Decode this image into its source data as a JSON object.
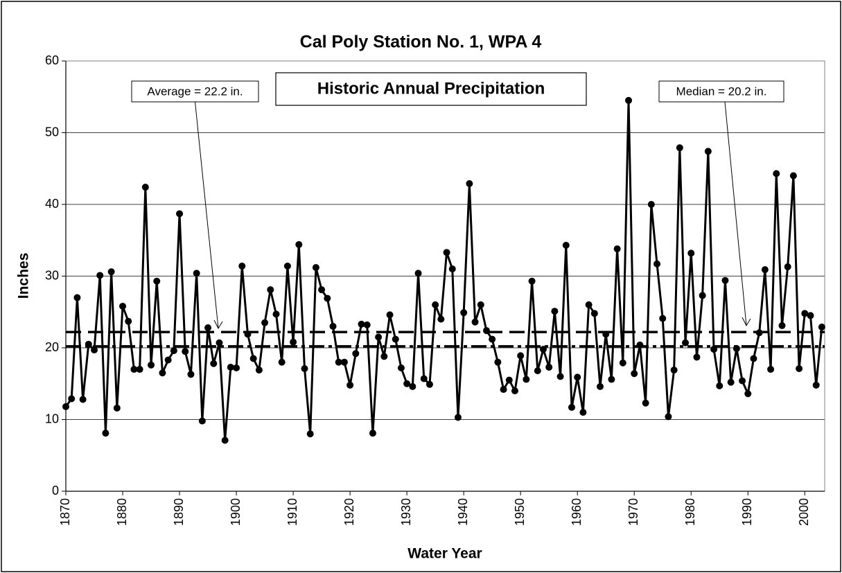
{
  "chart_data": {
    "type": "line",
    "title": "Cal Poly Station No. 1, WPA 4",
    "x_label": "Water Year",
    "y_label": "Inches",
    "annotation": "Historic Annual Precipitation",
    "xlim": [
      1870,
      2003.5
    ],
    "ylim": [
      0,
      60
    ],
    "xticks": [
      1870,
      1880,
      1890,
      1900,
      1910,
      1920,
      1930,
      1940,
      1950,
      1960,
      1970,
      1980,
      1990,
      2000
    ],
    "yticks": [
      0,
      10,
      20,
      30,
      40,
      50,
      60
    ],
    "grid": true,
    "x": [
      1870,
      1871,
      1872,
      1873,
      1874,
      1875,
      1876,
      1877,
      1878,
      1879,
      1880,
      1881,
      1882,
      1883,
      1884,
      1885,
      1886,
      1887,
      1888,
      1889,
      1890,
      1891,
      1892,
      1893,
      1894,
      1895,
      1896,
      1897,
      1898,
      1899,
      1900,
      1901,
      1902,
      1903,
      1904,
      1905,
      1906,
      1907,
      1908,
      1909,
      1910,
      1911,
      1912,
      1913,
      1914,
      1915,
      1916,
      1917,
      1918,
      1919,
      1920,
      1921,
      1922,
      1923,
      1924,
      1925,
      1926,
      1927,
      1928,
      1929,
      1930,
      1931,
      1932,
      1933,
      1934,
      1935,
      1936,
      1937,
      1938,
      1939,
      1940,
      1941,
      1942,
      1943,
      1944,
      1945,
      1946,
      1947,
      1948,
      1949,
      1950,
      1951,
      1952,
      1953,
      1954,
      1955,
      1956,
      1957,
      1958,
      1959,
      1960,
      1961,
      1962,
      1963,
      1964,
      1965,
      1966,
      1967,
      1968,
      1969,
      1970,
      1971,
      1972,
      1973,
      1974,
      1975,
      1976,
      1977,
      1978,
      1979,
      1980,
      1981,
      1982,
      1983,
      1984,
      1985,
      1986,
      1987,
      1988,
      1989,
      1990,
      1991,
      1992,
      1993,
      1994,
      1995,
      1996,
      1997,
      1998,
      1999,
      2000,
      2001,
      2002,
      2003
    ],
    "series": [
      {
        "name": "Annual Precipitation",
        "color": "#000000",
        "values": [
          11.8,
          12.9,
          27,
          12.8,
          20.5,
          19.7,
          30.1,
          8.1,
          30.6,
          11.6,
          25.8,
          23.7,
          17,
          17,
          42.4,
          17.6,
          29.3,
          16.5,
          18.3,
          19.6,
          38.7,
          19.5,
          16.3,
          30.4,
          9.8,
          22.8,
          17.8,
          20.7,
          7.1,
          17.3,
          17.2,
          31.4,
          21.9,
          18.5,
          16.9,
          23.5,
          28.1,
          24.7,
          18,
          31.4,
          20.8,
          34.4,
          17.1,
          8,
          31.2,
          28.1,
          26.9,
          23,
          18,
          18,
          14.8,
          19.2,
          23.3,
          23.2,
          8.1,
          21.5,
          18.8,
          24.6,
          21.2,
          17.2,
          15,
          14.6,
          30.4,
          15.7,
          14.9,
          26,
          24,
          33.3,
          31,
          10.3,
          24.9,
          42.9,
          23.6,
          26,
          22.4,
          21.2,
          18,
          14.2,
          15.5,
          14,
          18.9,
          15.6,
          29.3,
          16.8,
          19.8,
          17.3,
          25.1,
          16,
          34.3,
          11.7,
          15.9,
          11,
          26,
          24.8,
          14.6,
          21.9,
          15.6,
          33.8,
          17.9,
          54.5,
          16.4,
          20.4,
          12.3,
          40,
          31.7,
          24.1,
          10.4,
          16.9,
          47.9,
          20.7,
          33.2,
          18.7,
          27.3,
          47.4,
          19.8,
          14.7,
          29.4,
          15.2,
          19.9,
          15.4,
          13.6,
          18.5,
          22.1,
          30.9,
          17,
          44.3,
          23.1,
          31.3,
          44,
          17.1,
          24.8,
          24.5,
          14.8,
          22.9
        ]
      }
    ],
    "reference_lines": [
      {
        "label": "Average = 22.2 in.",
        "value": 22.2,
        "style": "dashed"
      },
      {
        "label": "Median = 20.2 in.",
        "value": 20.2,
        "style": "dashdot"
      }
    ]
  }
}
